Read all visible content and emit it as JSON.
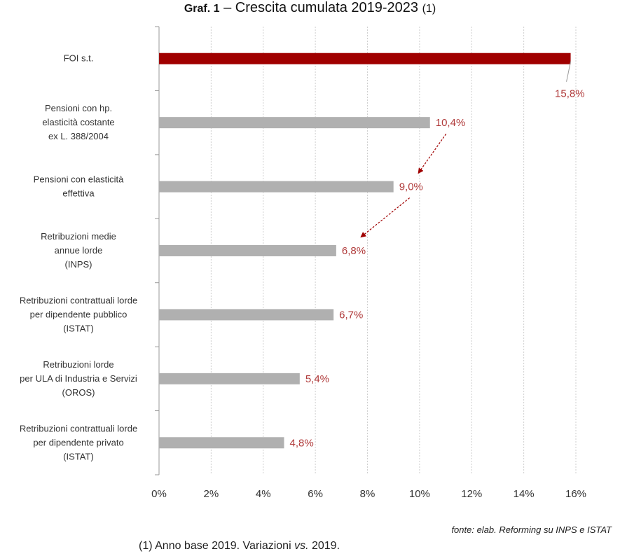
{
  "header": {
    "title_bold": "Graf. 1",
    "title_text": " – Crescita cumulata 2019-2023 ",
    "title_note": "(1)"
  },
  "chart_data": {
    "type": "bar",
    "orientation": "horizontal",
    "categories": [
      "FOI s.t.",
      "Pensioni con hp. elasticità costante ex L. 388/2004",
      "Pensioni con elasticità effettiva",
      "Retribuzioni medie annue lorde (INPS)",
      "Retribuzioni contrattuali lorde per dipendente pubblico (ISTAT)",
      "Retribuzioni lorde per ULA di Industria e Servizi (OROS)",
      "Retribuzioni contrattuali lorde per dipendente privato (ISTAT)"
    ],
    "category_lines": [
      [
        "FOI s.t."
      ],
      [
        "Pensioni con hp.",
        "elasticità costante",
        "ex L. 388/2004"
      ],
      [
        "Pensioni con elasticità",
        "effettiva"
      ],
      [
        "Retribuzioni medie",
        "annue lorde",
        "(INPS)"
      ],
      [
        "Retribuzioni contrattuali lorde",
        "per dipendente pubblico",
        "(ISTAT)"
      ],
      [
        "Retribuzioni lorde",
        "per ULA di Industria e Servizi",
        "(OROS)"
      ],
      [
        "Retribuzioni contrattuali lorde",
        "per dipendente privato",
        "(ISTAT)"
      ]
    ],
    "values": [
      15.8,
      10.4,
      9.0,
      6.8,
      6.7,
      5.4,
      4.8
    ],
    "value_labels": [
      "15,8%",
      "10,4%",
      "9,0%",
      "6,8%",
      "6,7%",
      "5,4%",
      "4,8%"
    ],
    "bar_colors": [
      "#a00000",
      "#b0b0b0",
      "#b0b0b0",
      "#b0b0b0",
      "#b0b0b0",
      "#b0b0b0",
      "#b0b0b0"
    ],
    "label_color": "#b03a3a",
    "xlim": [
      0,
      16
    ],
    "x_ticks": [
      0,
      2,
      4,
      6,
      8,
      10,
      12,
      14,
      16
    ],
    "x_tick_labels": [
      "0%",
      "2%",
      "4%",
      "6%",
      "8%",
      "10%",
      "12%",
      "14%",
      "16%"
    ],
    "grid": true,
    "arrows": [
      {
        "from": "10,4%",
        "to": "9,0%"
      },
      {
        "from": "9,0%",
        "to": "6,8%"
      }
    ]
  },
  "source": "fonte: elab. Reforming su INPS e ISTAT",
  "footnote": {
    "prefix": "(1) Anno base 2019. Variazioni ",
    "italic": "vs.",
    "suffix": " 2019."
  }
}
